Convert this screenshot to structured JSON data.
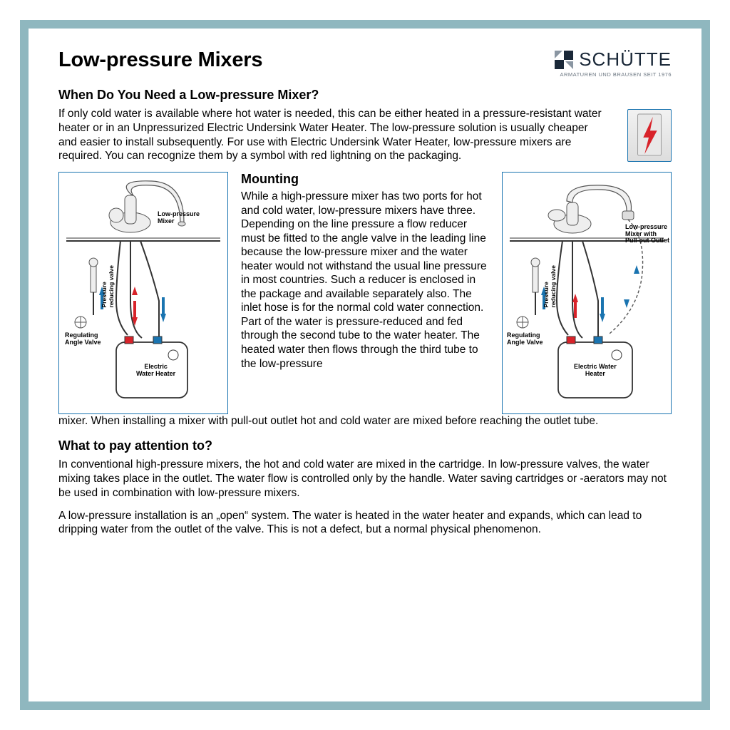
{
  "title": "Low-pressure Mixers",
  "brand": {
    "name": "SCHÜTTE",
    "tagline": "ARMATUREN UND BRAUSEN SEIT 1976",
    "logo_color_a": "#1a2838",
    "logo_color_b": "#8a96a2"
  },
  "colors": {
    "frame": "#8fb7bf",
    "diagram_border": "#1a74b0",
    "arrow_red": "#d8232a",
    "arrow_blue": "#1a74b0",
    "text": "#000000"
  },
  "section1": {
    "heading": "When Do You Need a Low-pressure Mixer?",
    "body": "If only cold water is available where hot water is needed, this can be either heated in a pressure-resistant water heater or in an Unpressurized Electric Undersink Water Heater. The low-pressure solution is usually cheaper and easier to install subsequently. For use with Electric Undersink Water Heater, low-pressure mixers are required. You can recognize them by a symbol with red lightning on the packaging."
  },
  "diagram_left": {
    "mixer_label": "Low-pressure\nMixer",
    "valve_label": "Pressure\nreducing valve",
    "regulating_label": "Regulating\nAngle Valve",
    "heater_label": "Electric\nWater Heater"
  },
  "diagram_right": {
    "mixer_label": "Low-pressure\nMixer with\nPull-out Outlet",
    "valve_label": "Pressure\nreducing valve",
    "regulating_label": "Regulating\nAngle Valve",
    "heater_label": "Electric Water\nHeater"
  },
  "mounting": {
    "heading": "Mounting",
    "body": "While a high-pressure mixer has two ports for hot and cold water, low-pressure mixers have three. Depending on the line pressure a flow reducer must be fitted to the angle valve in the leading line because the low-pressure mixer and the water heater would not withstand the usual line pressure in most countries. Such a reducer is enclosed in the package and available separately also. The inlet hose is for the normal cold water connection. Part of the water is pressure-reduced and fed through the second tube to the water heater. The heated water then flows  through the third tube to the low-pressure",
    "continuation": "mixer. When installing a mixer with pull-out outlet hot and cold water are mixed before reaching the outlet tube."
  },
  "section3": {
    "heading": "What to pay attention to?",
    "para1": "In conventional high-pressure mixers, the hot and cold water are mixed in the cartridge. In low-pressure valves, the water mixing takes place in the outlet. The water flow is controlled only by the handle. Water saving cartridges or -aerators may not be used in combination with low-pressure mixers.",
    "para2": "A low-pressure installation is an „open“ system. The water is heated in the water heater and expands, which can lead to dripping water from the outlet of the valve. This is not a defect, but a normal physical phenomenon."
  }
}
